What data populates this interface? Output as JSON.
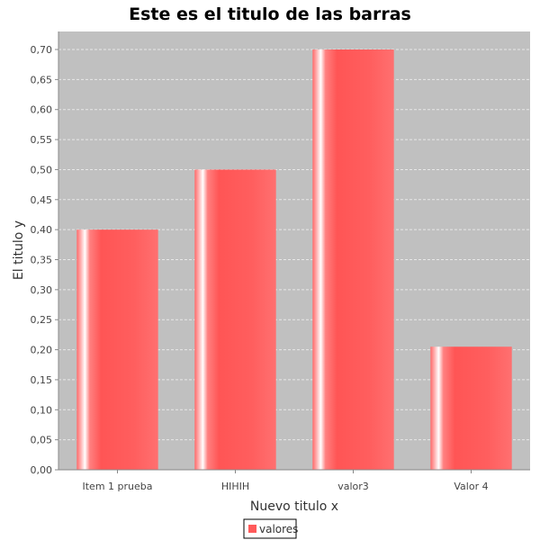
{
  "chart_data": {
    "type": "bar",
    "title": "Este es el titulo de las barras",
    "xlabel": "Nuevo titulo x",
    "ylabel": "El titulo y",
    "categories": [
      "Item 1 prueba",
      "HIHIH",
      "valor3",
      "Valor 4"
    ],
    "series": [
      {
        "name": "valores",
        "values": [
          0.4,
          0.5,
          0.7,
          0.205
        ]
      }
    ],
    "ylim": [
      0,
      0.73
    ],
    "yticks": [
      "0,00",
      "0,05",
      "0,10",
      "0,15",
      "0,20",
      "0,25",
      "0,30",
      "0,35",
      "0,40",
      "0,45",
      "0,50",
      "0,55",
      "0,60",
      "0,65",
      "0,70"
    ],
    "grid": true,
    "legend_position": "bottom",
    "colors": {
      "bar": "#ff5a5a",
      "bar_highlight": "#ffffff",
      "plot_background": "#c0c0c0",
      "gridline": "#e8e8e8"
    }
  }
}
